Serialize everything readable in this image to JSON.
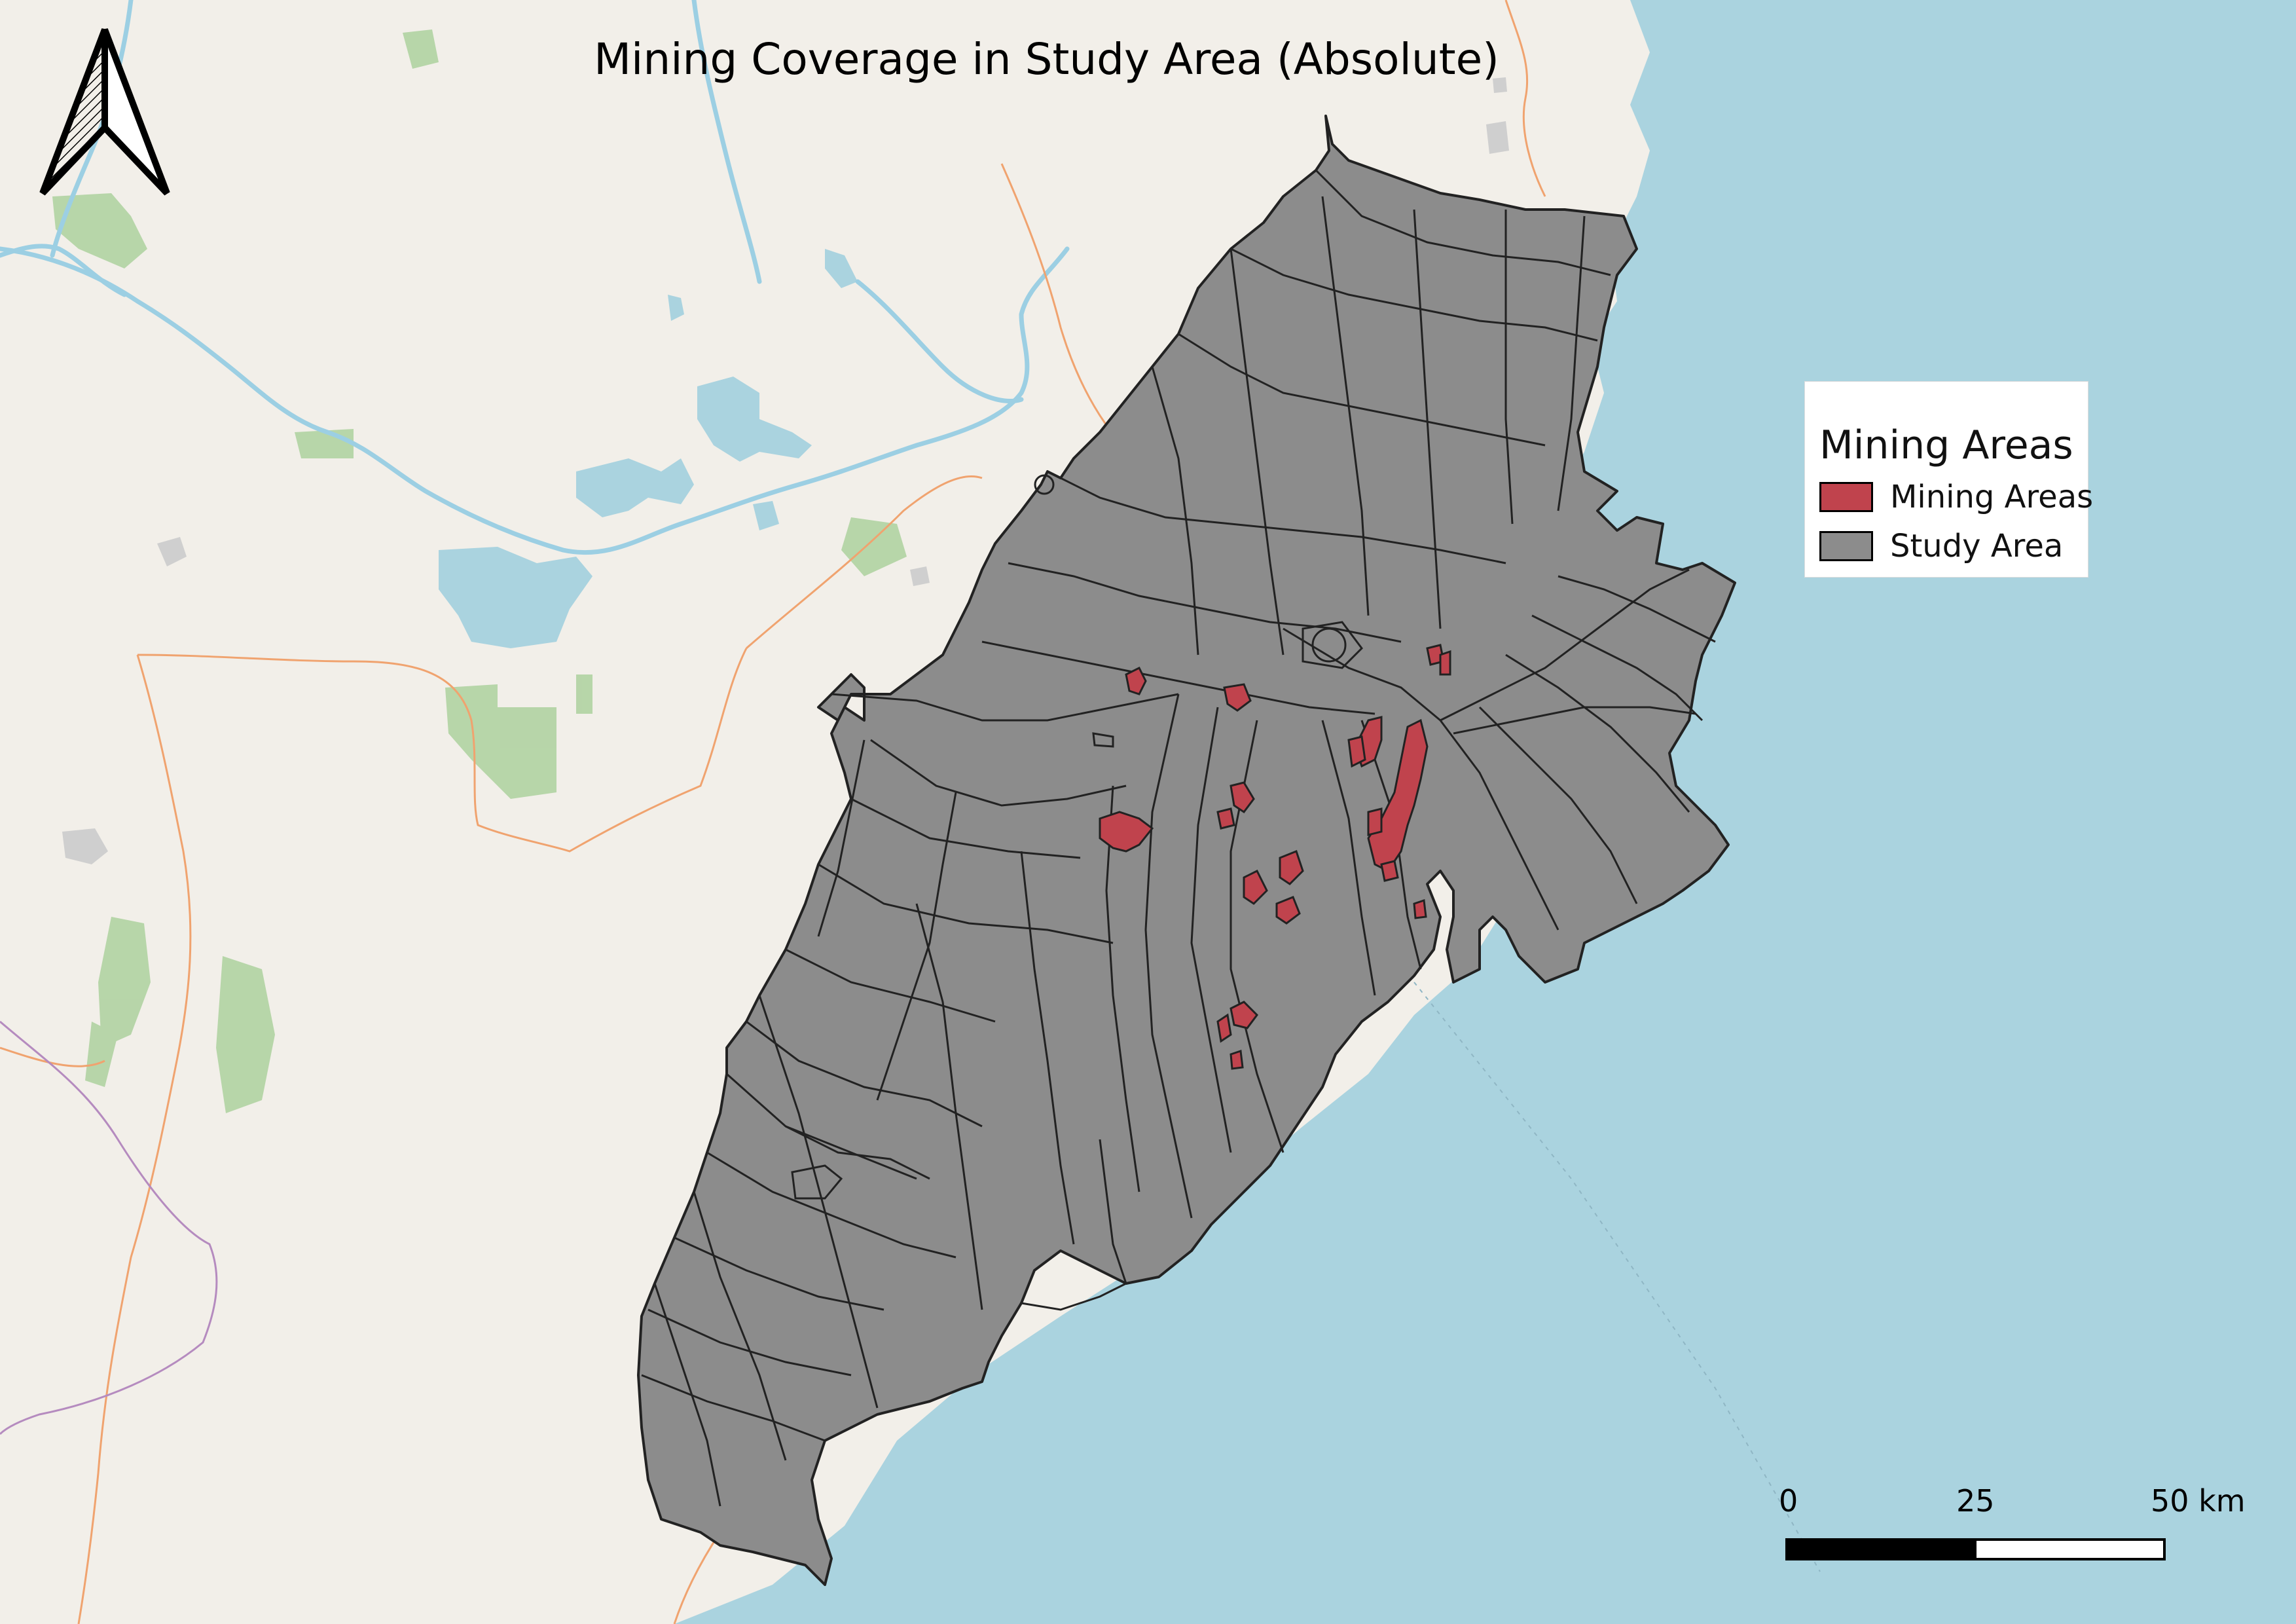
{
  "map": {
    "title": "Mining Coverage in Study Area (Absolute)",
    "colors": {
      "land": "#f2efe9",
      "sea": "#aad3df",
      "study_area_fill": "#8c8c8c",
      "study_area_stroke": "#222222",
      "mining_fill": "#c0434d",
      "forest": "#add19e",
      "lake": "#aad3df",
      "admin_border": "#f0a36f",
      "river": "#9ccfe3"
    }
  },
  "legend": {
    "title": "Mining Areas",
    "items": [
      {
        "label": "Mining Areas",
        "color": "#c0434d"
      },
      {
        "label": "Study Area",
        "color": "#8c8c8c"
      }
    ]
  },
  "scale_bar": {
    "labels": [
      "0",
      "25",
      "50 km"
    ]
  },
  "north_arrow": {
    "icon": "north-arrow-icon"
  }
}
